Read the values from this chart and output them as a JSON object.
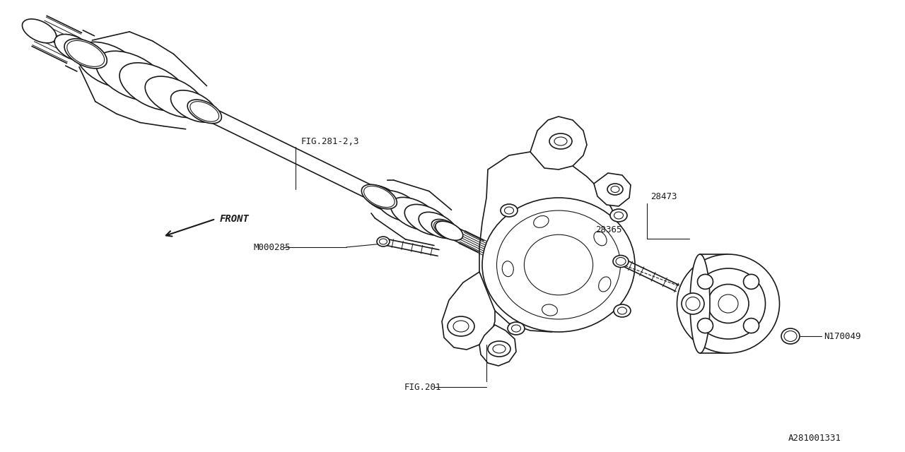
{
  "bg_color": "#ffffff",
  "line_color": "#1a1a1a",
  "fig_width": 12.8,
  "fig_height": 6.4,
  "dpi": 100,
  "labels": {
    "fig281": "FIG.281-2,3",
    "m000285": "M000285",
    "fig201": "FIG.201",
    "p28473": "28473",
    "p28365": "28365",
    "n170049": "N170049",
    "front": "FRONT",
    "part_num": "A281001331"
  }
}
